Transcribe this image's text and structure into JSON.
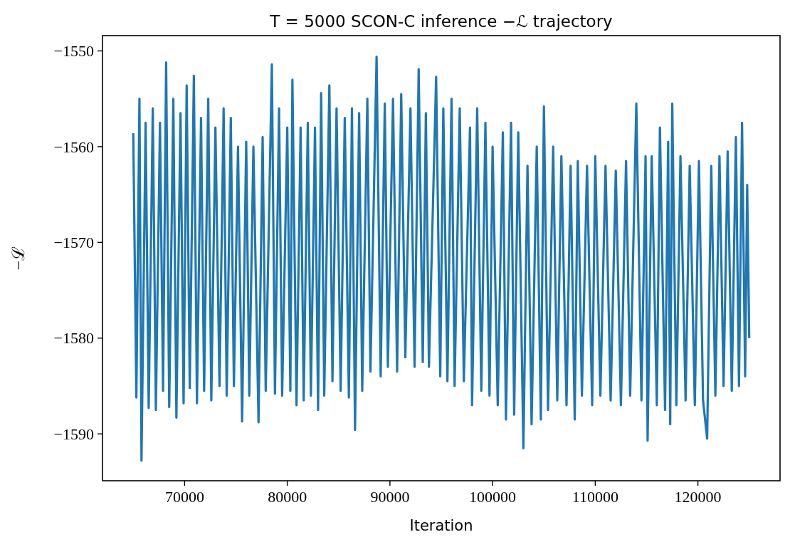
{
  "chart_data": {
    "type": "line",
    "title": "T = 5000 SCON-C inference −ℒ trajectory",
    "xlabel": "Iteration",
    "ylabel": "−ℒ",
    "xlim": [
      62000,
      128000
    ],
    "xticks": [
      70000,
      80000,
      90000,
      100000,
      110000,
      120000
    ],
    "ylim": [
      -1594.9,
      -1548.4
    ],
    "yticks": [
      {
        "value": -1550,
        "label": "−1550"
      },
      {
        "value": -1560,
        "label": "−1560"
      },
      {
        "value": -1570,
        "label": "−1570"
      },
      {
        "value": -1580,
        "label": "−1580"
      },
      {
        "value": -1590,
        "label": "−1590"
      }
    ],
    "grid": false,
    "marker": "none",
    "line_style": "solid",
    "series": [
      {
        "color": "#1f77b4",
        "x": [
          65000,
          65300,
          65600,
          65800,
          66200,
          66500,
          66900,
          67200,
          67600,
          67900,
          68200,
          68500,
          68900,
          69200,
          69600,
          69900,
          70200,
          70500,
          70900,
          71200,
          71600,
          71900,
          72300,
          72600,
          73000,
          73400,
          73800,
          74100,
          74500,
          74800,
          75200,
          75600,
          76000,
          76300,
          76700,
          77200,
          77600,
          77900,
          78500,
          78800,
          79200,
          79500,
          80000,
          80300,
          80500,
          80900,
          81300,
          81600,
          82000,
          82300,
          82700,
          83000,
          83300,
          83600,
          84100,
          84400,
          84800,
          85200,
          85600,
          86000,
          86300,
          86600,
          87000,
          87300,
          87800,
          88100,
          88700,
          89100,
          89500,
          89800,
          90300,
          90700,
          91100,
          91500,
          92000,
          92400,
          92800,
          93200,
          93500,
          93800,
          94500,
          94900,
          95200,
          95600,
          96000,
          96300,
          96800,
          97200,
          97800,
          98000,
          98500,
          98900,
          99300,
          99700,
          100000,
          100500,
          101000,
          101300,
          101800,
          102100,
          102500,
          103000,
          103400,
          103800,
          104300,
          104700,
          105000,
          105400,
          105900,
          106300,
          106700,
          107200,
          107600,
          108000,
          108300,
          108700,
          109200,
          109700,
          110000,
          110500,
          111000,
          111500,
          112000,
          112500,
          113000,
          113400,
          114000,
          114500,
          114900,
          115100,
          115500,
          116000,
          116300,
          116800,
          117100,
          117300,
          117500,
          117900,
          118300,
          118800,
          119200,
          119700,
          120100,
          120500,
          120900,
          121300,
          121700,
          122100,
          122500,
          122900,
          123300,
          123700,
          124000,
          124300,
          124600,
          124800,
          125000
        ],
        "values": [
          -1558.6,
          -1586.2,
          -1555.0,
          -1592.8,
          -1557.5,
          -1587.3,
          -1556.0,
          -1587.5,
          -1557.5,
          -1585.5,
          -1551.2,
          -1587.2,
          -1555.0,
          -1588.3,
          -1556.5,
          -1586.8,
          -1553.6,
          -1585.2,
          -1552.6,
          -1586.8,
          -1557.0,
          -1585.5,
          -1555.0,
          -1586.5,
          -1558.0,
          -1585.0,
          -1556.0,
          -1586.0,
          -1557.0,
          -1585.0,
          -1560.0,
          -1588.7,
          -1559.5,
          -1586.0,
          -1560.0,
          -1588.8,
          -1559.0,
          -1585.5,
          -1551.4,
          -1585.8,
          -1556.0,
          -1586.0,
          -1558.0,
          -1585.5,
          -1553.0,
          -1587.0,
          -1558.0,
          -1586.5,
          -1557.5,
          -1586.0,
          -1558.0,
          -1587.5,
          -1554.4,
          -1586.0,
          -1553.6,
          -1584.5,
          -1556.0,
          -1585.5,
          -1557.0,
          -1586.2,
          -1556.0,
          -1589.6,
          -1556.5,
          -1585.5,
          -1555.0,
          -1583.5,
          -1550.6,
          -1584.0,
          -1555.5,
          -1583.0,
          -1555.0,
          -1583.5,
          -1554.5,
          -1582.0,
          -1556.0,
          -1583.0,
          -1551.9,
          -1582.5,
          -1556.5,
          -1583.0,
          -1552.7,
          -1584.0,
          -1556.0,
          -1584.5,
          -1555.0,
          -1585.0,
          -1556.0,
          -1584.5,
          -1558.0,
          -1587.0,
          -1556.0,
          -1585.5,
          -1557.5,
          -1586.0,
          -1560.0,
          -1587.0,
          -1558.5,
          -1588.5,
          -1557.5,
          -1588.0,
          -1558.5,
          -1591.5,
          -1562.0,
          -1589.0,
          -1560.0,
          -1588.5,
          -1555.8,
          -1587.5,
          -1560.0,
          -1586.5,
          -1561.0,
          -1587.0,
          -1562.0,
          -1588.5,
          -1561.5,
          -1586.0,
          -1562.0,
          -1587.0,
          -1561.0,
          -1586.0,
          -1562.0,
          -1586.5,
          -1562.5,
          -1587.0,
          -1561.5,
          -1586.0,
          -1555.5,
          -1586.5,
          -1561.0,
          -1590.7,
          -1561.0,
          -1587.0,
          -1558.0,
          -1587.5,
          -1559.5,
          -1589.0,
          -1555.5,
          -1587.0,
          -1561.0,
          -1586.5,
          -1562.0,
          -1587.0,
          -1561.5,
          -1586.5,
          -1590.5,
          -1562.0,
          -1586.0,
          -1561.0,
          -1585.0,
          -1560.5,
          -1585.5,
          -1559.0,
          -1585.0,
          -1557.5,
          -1584.0,
          -1564.0,
          -1580.0
        ]
      }
    ]
  }
}
